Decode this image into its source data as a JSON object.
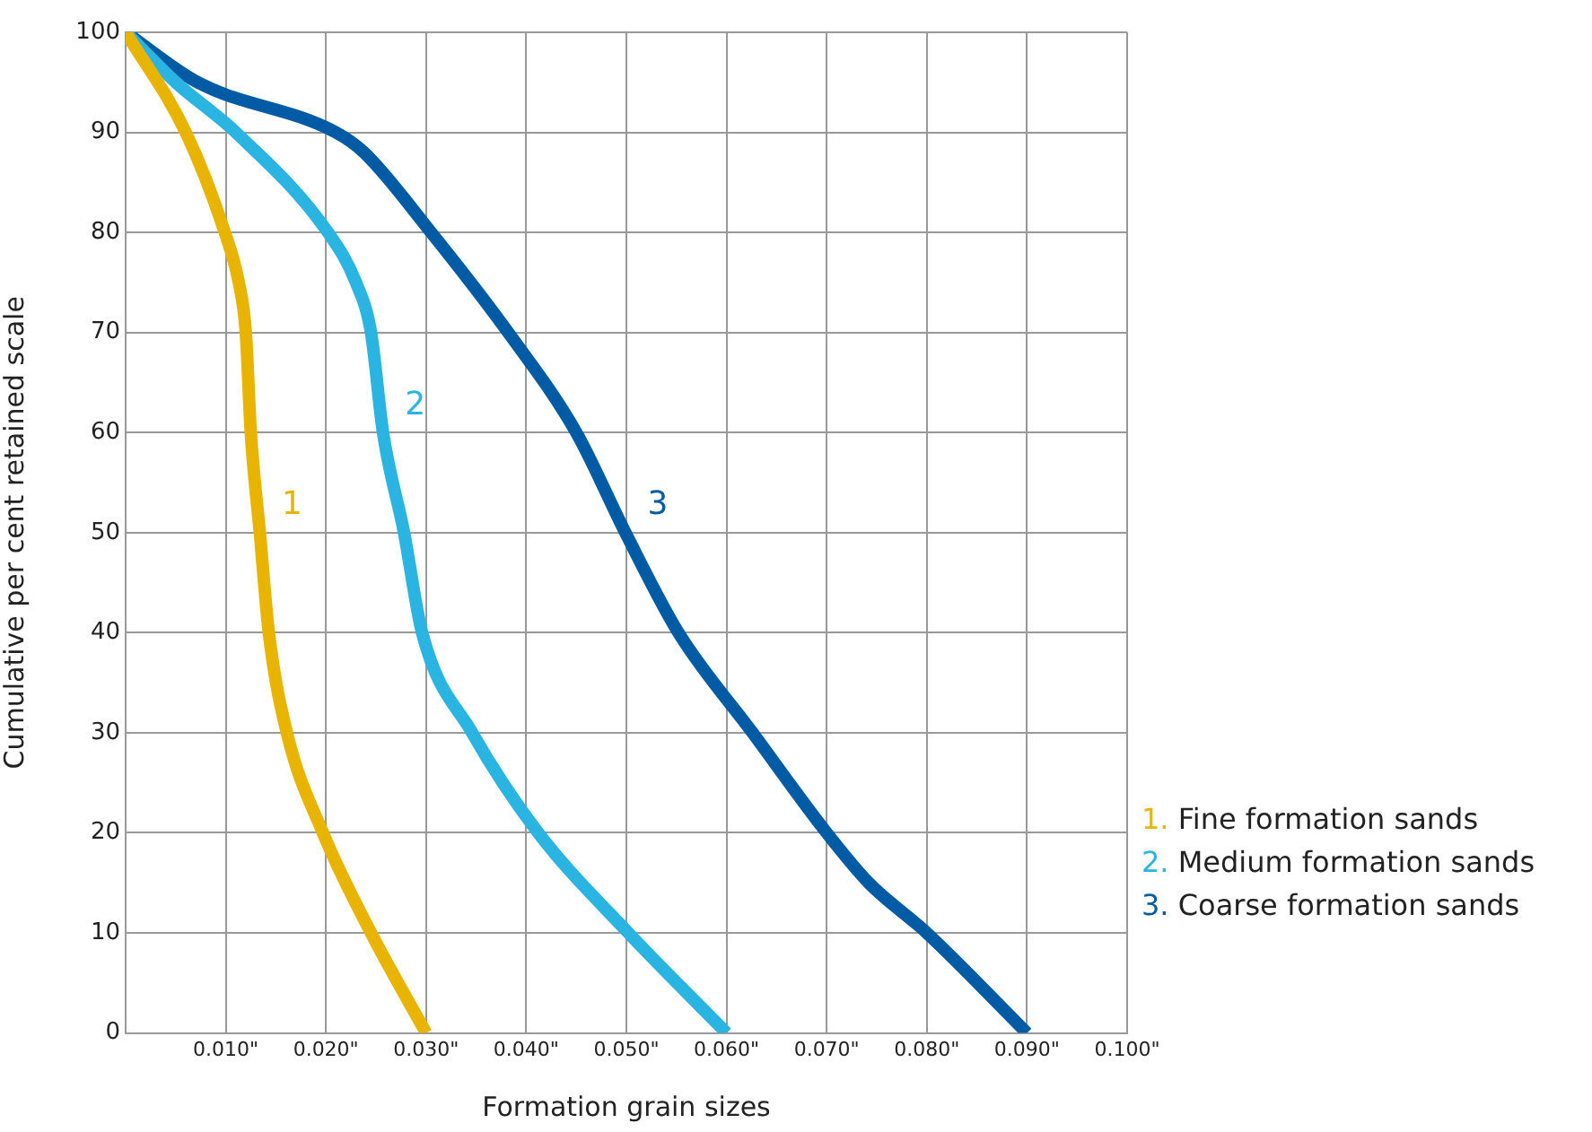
{
  "chart_data": {
    "type": "line",
    "xlabel": "Formation grain sizes",
    "ylabel": "Cumulative per cent retained scale",
    "series": [
      {
        "name": "1. Fine formation sands",
        "color": "#e8b400",
        "x": [
          0,
          0.006,
          0.0099,
          0.0113,
          0.012,
          0.0125,
          0.0134,
          0.0143,
          0.0161,
          0.0197,
          0.0245,
          0.03
        ],
        "values": [
          100,
          90,
          80,
          75,
          70,
          60,
          50,
          40,
          30,
          20,
          10,
          0
        ]
      },
      {
        "name": "2. Medium formation sands",
        "color": "#29b4e2",
        "x": [
          0,
          0.005,
          0.011,
          0.0202,
          0.023,
          0.0245,
          0.0257,
          0.0278,
          0.0296,
          0.0346,
          0.0412,
          0.0502,
          0.06
        ],
        "values": [
          100,
          95,
          90,
          80,
          75,
          70,
          60,
          50,
          40,
          30,
          20,
          10,
          0
        ]
      },
      {
        "name": "3. Coarse formation sands",
        "color": "#005ba5",
        "x": [
          0,
          0.0072,
          0.021,
          0.0238,
          0.0305,
          0.0382,
          0.045,
          0.0499,
          0.0552,
          0.0626,
          0.07,
          0.0742,
          0.08,
          0.09
        ],
        "values": [
          100,
          95,
          90,
          88,
          80,
          70,
          60,
          50,
          40,
          30,
          20,
          15,
          10,
          0
        ]
      }
    ],
    "annotations": [
      "1",
      "2",
      "3"
    ],
    "xlim": [
      0,
      0.1
    ],
    "xticks": [
      {
        "value": 0,
        "label": null
      },
      {
        "value": 0.01,
        "label": "0.010\""
      },
      {
        "value": 0.02,
        "label": "0.020\""
      },
      {
        "value": 0.03,
        "label": "0.030\""
      },
      {
        "value": 0.04,
        "label": "0.040\""
      },
      {
        "value": 0.05,
        "label": "0.050\""
      },
      {
        "value": 0.06,
        "label": "0.060\""
      },
      {
        "value": 0.07,
        "label": "0.070\""
      },
      {
        "value": 0.08,
        "label": "0.080\""
      },
      {
        "value": 0.09,
        "label": "0.090\""
      },
      {
        "value": 0.1,
        "label": "0.100\""
      }
    ],
    "ylim": [
      0,
      100
    ],
    "yticks": [
      0,
      10,
      20,
      30,
      40,
      50,
      60,
      70,
      80,
      90,
      100
    ],
    "grid": true,
    "legend": "bottom right",
    "marker": "none",
    "line_style": "solid"
  }
}
